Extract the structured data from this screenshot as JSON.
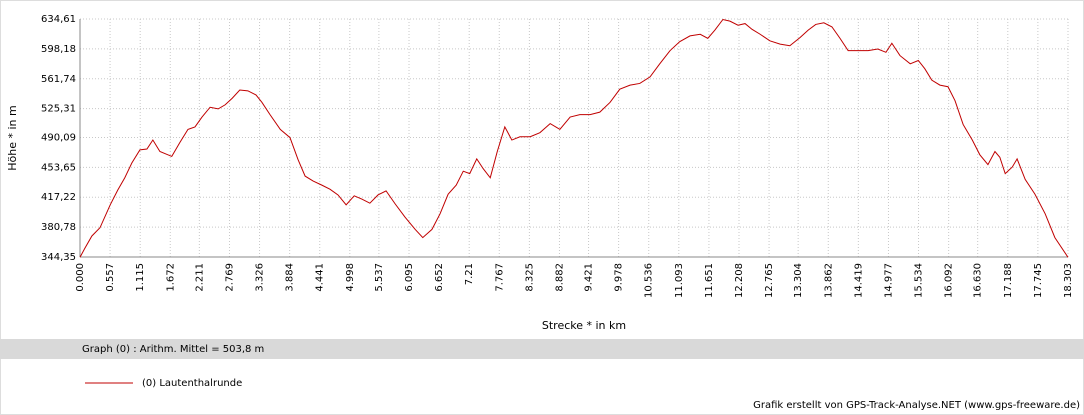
{
  "chart_data": {
    "type": "line",
    "y_label": "Höhe *  in  m",
    "x_label": "Strecke *  in  km",
    "annotation": "Graph (0) :  Arithm. Mittel = 503,8 m",
    "footer": "Grafik erstellt von GPS-Track-Analyse.NET (www.gps-freeware.de)",
    "grid": true,
    "xlim": [
      0,
      18.303
    ],
    "ylim": [
      344.35,
      634.61
    ],
    "xticks": [
      {
        "value": 0,
        "label": "0.000"
      },
      0.557,
      1.115,
      1.672,
      2.211,
      2.769,
      3.326,
      3.884,
      4.441,
      4.998,
      5.537,
      6.095,
      6.652,
      7.21,
      7.767,
      8.325,
      8.882,
      9.421,
      9.978,
      10.536,
      11.093,
      11.651,
      12.208,
      12.765,
      13.304,
      13.862,
      14.419,
      14.977,
      15.534,
      16.092,
      {
        "value": 16.63,
        "label": "16.630"
      },
      17.188,
      17.745,
      18.303
    ],
    "yticks": [
      {
        "value": 344.35,
        "label": "344,35"
      },
      {
        "value": 380.78,
        "label": "380,78"
      },
      {
        "value": 417.22,
        "label": "417,22"
      },
      {
        "value": 453.65,
        "label": "453,65"
      },
      {
        "value": 490.09,
        "label": "490,09"
      },
      {
        "value": 525.31,
        "label": "525,31"
      },
      {
        "value": 561.74,
        "label": "561,74"
      },
      {
        "value": 598.18,
        "label": "598,18"
      },
      {
        "value": 634.61,
        "label": "634,61"
      }
    ],
    "x": [
      0,
      0.09,
      0.22,
      0.37,
      0.56,
      0.7,
      0.83,
      0.96,
      1.11,
      1.24,
      1.35,
      1.48,
      1.7,
      1.85,
      2.0,
      2.13,
      2.26,
      2.41,
      2.56,
      2.69,
      2.82,
      2.96,
      3.11,
      3.26,
      3.37,
      3.52,
      3.71,
      3.89,
      4.04,
      4.17,
      4.32,
      4.48,
      4.63,
      4.78,
      4.93,
      5.08,
      5.22,
      5.37,
      5.52,
      5.67,
      5.84,
      6.02,
      6.21,
      6.35,
      6.52,
      6.67,
      6.82,
      6.97,
      7.1,
      7.22,
      7.35,
      7.47,
      7.6,
      7.73,
      7.87,
      8.0,
      8.15,
      8.34,
      8.52,
      8.71,
      8.89,
      9.08,
      9.26,
      9.45,
      9.63,
      9.82,
      10.0,
      10.19,
      10.37,
      10.56,
      10.74,
      10.93,
      11.11,
      11.3,
      11.49,
      11.63,
      11.76,
      11.91,
      12.04,
      12.19,
      12.32,
      12.45,
      12.6,
      12.78,
      12.97,
      13.15,
      13.34,
      13.49,
      13.63,
      13.78,
      13.93,
      14.08,
      14.23,
      14.41,
      14.6,
      14.78,
      14.93,
      15.04,
      15.19,
      15.38,
      15.53,
      15.65,
      15.78,
      15.93,
      16.08,
      16.21,
      16.36,
      16.53,
      16.67,
      16.82,
      16.95,
      17.04,
      17.14,
      17.27,
      17.36,
      17.51,
      17.69,
      17.88,
      18.06,
      18.303
    ],
    "series": [
      {
        "name": "(0) Lautenthalrunde",
        "color": "#c00000",
        "values": [
          344,
          355,
          370,
          380,
          408,
          426,
          441,
          459,
          475,
          476,
          487,
          473,
          467,
          484,
          500,
          503,
          515,
          527,
          525,
          530,
          538,
          548,
          547,
          542,
          533,
          518,
          500,
          490,
          463,
          443,
          437,
          432,
          427,
          420,
          408,
          419,
          415,
          410,
          420,
          425,
          409,
          393,
          378,
          368,
          378,
          397,
          421,
          432,
          449,
          446,
          464,
          452,
          441,
          473,
          503,
          487,
          491,
          491,
          496,
          507,
          500,
          515,
          518,
          518,
          521,
          533,
          549,
          554,
          556,
          564,
          580,
          596,
          607,
          614,
          616,
          611,
          621,
          634,
          632,
          627,
          629,
          622,
          616,
          608,
          604,
          602,
          612,
          621,
          628,
          630,
          625,
          611,
          596,
          596,
          596,
          598,
          594,
          605,
          590,
          580,
          584,
          574,
          560,
          554,
          552,
          535,
          506,
          487,
          469,
          457,
          473,
          466,
          446,
          454,
          464,
          439,
          421,
          397,
          368,
          344
        ]
      }
    ]
  }
}
